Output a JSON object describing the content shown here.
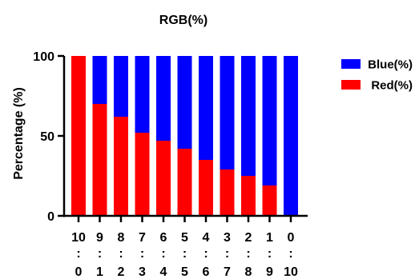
{
  "chart_data": {
    "type": "bar",
    "stacked": true,
    "title": "RGB(%)",
    "ylabel": "Percentage   (%)",
    "xlabel": "",
    "ylim": [
      0,
      100
    ],
    "yticks": [
      0,
      50,
      100
    ],
    "grid": false,
    "legend_position": "top-right",
    "categories": [
      {
        "top": "10",
        "mid": ":",
        "bottom": "0"
      },
      {
        "top": "9",
        "mid": ":",
        "bottom": "1"
      },
      {
        "top": "8",
        "mid": ":",
        "bottom": "2"
      },
      {
        "top": "7",
        "mid": ":",
        "bottom": "3"
      },
      {
        "top": "6",
        "mid": ":",
        "bottom": "4"
      },
      {
        "top": "5",
        "mid": ":",
        "bottom": "5"
      },
      {
        "top": "4",
        "mid": ":",
        "bottom": "6"
      },
      {
        "top": "3",
        "mid": ":",
        "bottom": "7"
      },
      {
        "top": "2",
        "mid": ":",
        "bottom": "8"
      },
      {
        "top": "1",
        "mid": ":",
        "bottom": "9"
      },
      {
        "top": "0",
        "mid": ":",
        "bottom": "10"
      }
    ],
    "series": [
      {
        "name": "Red(%)",
        "color": "#ff0000",
        "values": [
          100,
          70,
          62,
          52,
          47,
          42,
          35,
          29,
          25,
          19,
          0
        ]
      },
      {
        "name": "Blue(%)",
        "color": "#0000ff",
        "values": [
          0,
          30,
          38,
          48,
          53,
          58,
          65,
          71,
          75,
          81,
          100
        ]
      }
    ],
    "legend_order": [
      "Blue(%)",
      "Red(%)"
    ]
  }
}
